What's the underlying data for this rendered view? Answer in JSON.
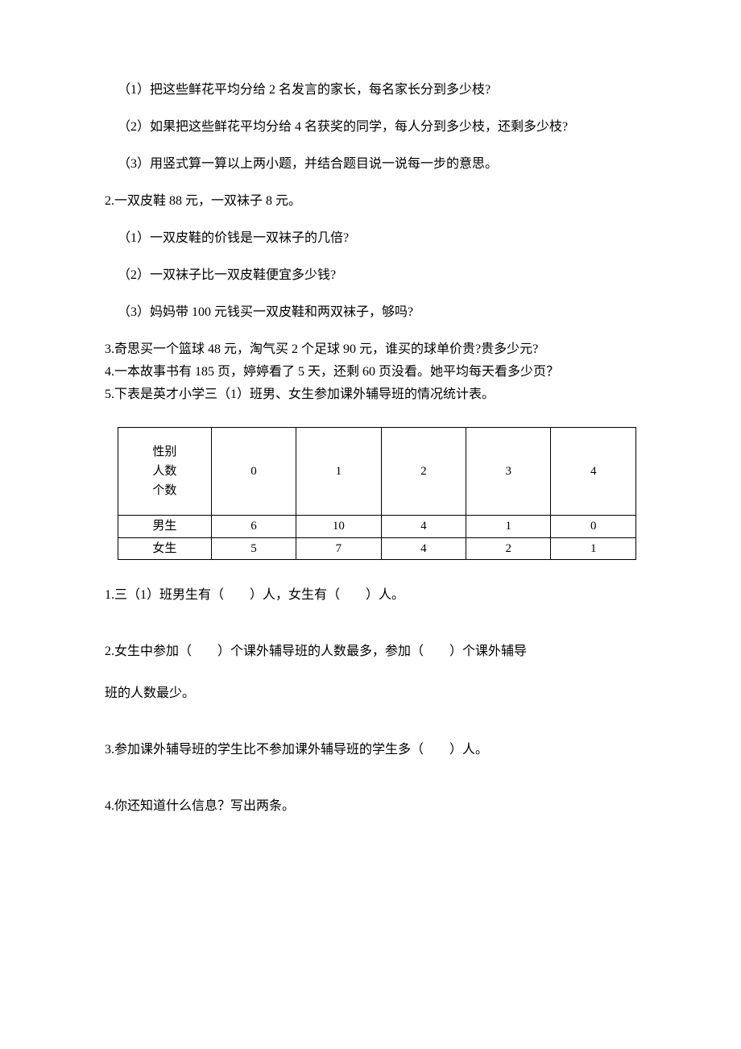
{
  "q1": {
    "sub1": "（1）把这些鲜花平均分给 2 名发言的家长，每名家长分到多少枝?",
    "sub2": "（2）如果把这些鲜花平均分给 4 名获奖的同学，每人分到多少枝，还剩多少枝?",
    "sub3": "（3）用竖式算一算以上两小题，并结合题目说一说每一步的意思。"
  },
  "q2": {
    "title": "2.一双皮鞋 88 元，一双袜子 8 元。",
    "sub1": "（1）一双皮鞋的价钱是一双袜子的几倍?",
    "sub2": "（2）一双袜子比一双皮鞋便宜多少钱?",
    "sub3": "（3）妈妈带 100 元钱买一双皮鞋和两双袜子，够吗?"
  },
  "q3": "3.奇思买一个篮球 48 元，淘气买 2 个足球 90 元，谁买的球单价贵?贵多少元?",
  "q4": "4.一本故事书有 185 页，婷婷看了 5 天，还剩 60 页没看。她平均每天看多少页？",
  "q5": {
    "title": "5.下表是英才小学三（1）班男、女生参加课外辅导班的情况统计表。",
    "table": {
      "header_cell": "性别\n人数\n个数",
      "columns": [
        "0",
        "1",
        "2",
        "3",
        "4"
      ],
      "rows": [
        {
          "label": "男生",
          "values": [
            "6",
            "10",
            "4",
            "1",
            "0"
          ]
        },
        {
          "label": "女生",
          "values": [
            "5",
            "7",
            "4",
            "2",
            "1"
          ]
        }
      ],
      "border_color": "#000000",
      "background_color": "#ffffff",
      "font_size": 15
    },
    "sub_questions": {
      "s1": "1.三（1）班男生有（　　）人，女生有（　　）人。",
      "s2": "2.女生中参加（　　）个课外辅导班的人数最多，参加（　　）个课外辅导",
      "s2b": "班的人数最少。",
      "s3": "3.参加课外辅导班的学生比不参加课外辅导班的学生多（　　）人。",
      "s4": "4.你还知道什么信息？写出两条。"
    }
  }
}
